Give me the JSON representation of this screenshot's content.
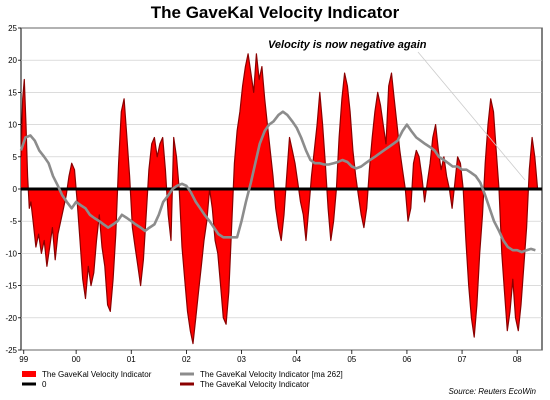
{
  "chart_data": {
    "type": "area",
    "title": "The GaveKal Velocity Indicator",
    "annotation": "Velocity is now negative again",
    "source": "Source: Reuters EcoWin",
    "ylim": [
      -25,
      25
    ],
    "yticks": [
      25,
      20,
      15,
      10,
      5,
      0,
      -5,
      -10,
      -15,
      -20,
      -25
    ],
    "xlim": [
      1999.0,
      2008.45
    ],
    "xticks": [
      {
        "label": "99",
        "x": 1999.05
      },
      {
        "label": "00",
        "x": 2000.0
      },
      {
        "label": "01",
        "x": 2001.0
      },
      {
        "label": "02",
        "x": 2002.0
      },
      {
        "label": "03",
        "x": 2003.0
      },
      {
        "label": "04",
        "x": 2004.0
      },
      {
        "label": "05",
        "x": 2005.0
      },
      {
        "label": "06",
        "x": 2006.0
      },
      {
        "label": "07",
        "x": 2007.0
      },
      {
        "label": "08",
        "x": 2008.0
      }
    ],
    "grid": true,
    "legend_position": "bottom",
    "legend": [
      {
        "label": "The GaveKal Velocity Indicator",
        "color": "#ff0000",
        "kind": "area"
      },
      {
        "label": "0",
        "color": "#000000",
        "kind": "line"
      },
      {
        "label": "The GaveKal Velocity Indicator [ma 262]",
        "color": "#8c8c8c",
        "kind": "line"
      },
      {
        "label": "The GaveKal Velocity Indicator",
        "color": "#8b0000",
        "kind": "line"
      }
    ],
    "colors": {
      "fill": "#ff0000",
      "outline": "#8b0000",
      "ma": "#8c8c8c",
      "zero": "#000000"
    },
    "series": [
      {
        "name": "The GaveKal Velocity Indicator",
        "x": [
          1999.0,
          1999.03,
          1999.06,
          1999.09,
          1999.12,
          1999.15,
          1999.18,
          1999.22,
          1999.27,
          1999.32,
          1999.37,
          1999.42,
          1999.47,
          1999.52,
          1999.57,
          1999.62,
          1999.67,
          1999.72,
          1999.77,
          1999.82,
          1999.87,
          1999.92,
          1999.97,
          2000.02,
          2000.07,
          2000.12,
          2000.17,
          2000.22,
          2000.27,
          2000.32,
          2000.37,
          2000.42,
          2000.47,
          2000.52,
          2000.57,
          2000.62,
          2000.67,
          2000.72,
          2000.77,
          2000.82,
          2000.87,
          2000.92,
          2000.97,
          2001.02,
          2001.07,
          2001.12,
          2001.17,
          2001.22,
          2001.27,
          2001.32,
          2001.37,
          2001.42,
          2001.47,
          2001.52,
          2001.57,
          2001.62,
          2001.67,
          2001.72,
          2001.77,
          2001.82,
          2001.87,
          2001.92,
          2001.97,
          2002.02,
          2002.07,
          2002.12,
          2002.17,
          2002.22,
          2002.27,
          2002.32,
          2002.37,
          2002.42,
          2002.47,
          2002.52,
          2002.57,
          2002.62,
          2002.67,
          2002.72,
          2002.77,
          2002.82,
          2002.87,
          2002.92,
          2002.97,
          2003.02,
          2003.07,
          2003.12,
          2003.17,
          2003.22,
          2003.27,
          2003.32,
          2003.37,
          2003.42,
          2003.47,
          2003.52,
          2003.57,
          2003.62,
          2003.67,
          2003.72,
          2003.77,
          2003.82,
          2003.87,
          2003.92,
          2003.97,
          2004.02,
          2004.07,
          2004.12,
          2004.17,
          2004.22,
          2004.27,
          2004.32,
          2004.37,
          2004.42,
          2004.47,
          2004.52,
          2004.57,
          2004.62,
          2004.67,
          2004.72,
          2004.77,
          2004.82,
          2004.87,
          2004.92,
          2004.97,
          2005.02,
          2005.07,
          2005.12,
          2005.17,
          2005.22,
          2005.27,
          2005.32,
          2005.37,
          2005.42,
          2005.47,
          2005.52,
          2005.57,
          2005.62,
          2005.67,
          2005.72,
          2005.77,
          2005.82,
          2005.87,
          2005.92,
          2005.97,
          2006.02,
          2006.07,
          2006.12,
          2006.17,
          2006.22,
          2006.27,
          2006.32,
          2006.37,
          2006.42,
          2006.47,
          2006.52,
          2006.57,
          2006.62,
          2006.67,
          2006.72,
          2006.77,
          2006.82,
          2006.87,
          2006.92,
          2006.97,
          2007.02,
          2007.07,
          2007.12,
          2007.17,
          2007.22,
          2007.27,
          2007.32,
          2007.37,
          2007.42,
          2007.47,
          2007.52,
          2007.57,
          2007.62,
          2007.67,
          2007.72,
          2007.77,
          2007.82,
          2007.87,
          2007.92,
          2007.97,
          2008.02,
          2008.07,
          2008.12,
          2008.17,
          2008.22,
          2008.27,
          2008.32,
          2008.37
        ],
        "values": [
          5,
          14,
          17,
          10,
          2,
          -3,
          -2,
          -5,
          -9,
          -7,
          -10,
          -8,
          -12,
          -9,
          -6,
          -11,
          -7,
          -5,
          -3,
          -1,
          2,
          4,
          3,
          -2,
          -8,
          -14,
          -17,
          -12,
          -15,
          -13,
          -8,
          -4,
          -9,
          -12,
          -18,
          -19,
          -14,
          -7,
          4,
          12,
          14,
          8,
          2,
          -6,
          -9,
          -12,
          -15,
          -11,
          -4,
          3,
          7,
          8,
          5,
          7,
          8,
          3,
          -4,
          -8,
          8,
          5,
          0,
          -9,
          -14,
          -19,
          -22,
          -24,
          -20,
          -16,
          -12,
          -8,
          -5,
          0,
          -3,
          -8,
          -10,
          -15,
          -20,
          -21,
          -16,
          -6,
          4,
          9,
          12,
          16,
          19,
          21,
          18,
          15,
          21,
          17,
          19,
          14,
          10,
          6,
          2,
          -3,
          -6,
          -8,
          -4,
          2,
          8,
          6,
          4,
          1,
          -2,
          -4,
          -8,
          -3,
          2,
          6,
          10,
          15,
          10,
          4,
          -3,
          -8,
          -5,
          0,
          8,
          14,
          18,
          16,
          12,
          6,
          2,
          -1,
          -4,
          -6,
          -3,
          3,
          8,
          12,
          15,
          13,
          10,
          7,
          16,
          18,
          14,
          10,
          6,
          3,
          0,
          -5,
          -3,
          4,
          6,
          5,
          2,
          -2,
          1,
          4,
          8,
          10,
          6,
          3,
          5,
          2,
          0,
          -3,
          1,
          5,
          4,
          0,
          -8,
          -15,
          -20,
          -23,
          -18,
          -10,
          -4,
          4,
          10,
          14,
          12,
          6,
          0,
          -10,
          -16,
          -22,
          -19,
          -14,
          -20,
          -22,
          -18,
          -12,
          -6,
          3,
          8,
          5,
          0
        ]
      },
      {
        "name": "The GaveKal Velocity Indicator [ma 262]",
        "x": [
          1999.0,
          1999.08,
          1999.17,
          1999.25,
          1999.33,
          1999.42,
          1999.5,
          1999.58,
          1999.67,
          1999.75,
          1999.83,
          1999.92,
          2000.0,
          2000.08,
          2000.17,
          2000.25,
          2000.33,
          2000.42,
          2000.5,
          2000.58,
          2000.67,
          2000.75,
          2000.83,
          2000.92,
          2001.0,
          2001.08,
          2001.17,
          2001.25,
          2001.33,
          2001.42,
          2001.5,
          2001.58,
          2001.67,
          2001.75,
          2001.83,
          2001.92,
          2002.0,
          2002.08,
          2002.17,
          2002.25,
          2002.33,
          2002.42,
          2002.5,
          2002.58,
          2002.67,
          2002.75,
          2002.83,
          2002.92,
          2003.0,
          2003.08,
          2003.17,
          2003.25,
          2003.33,
          2003.42,
          2003.5,
          2003.58,
          2003.67,
          2003.75,
          2003.83,
          2003.92,
          2004.0,
          2004.08,
          2004.17,
          2004.25,
          2004.33,
          2004.42,
          2004.5,
          2004.58,
          2004.67,
          2004.75,
          2004.83,
          2004.92,
          2005.0,
          2005.08,
          2005.17,
          2005.25,
          2005.33,
          2005.42,
          2005.5,
          2005.58,
          2005.67,
          2005.75,
          2005.83,
          2005.92,
          2006.0,
          2006.08,
          2006.17,
          2006.25,
          2006.33,
          2006.42,
          2006.5,
          2006.58,
          2006.67,
          2006.75,
          2006.83,
          2006.92,
          2007.0,
          2007.08,
          2007.17,
          2007.25,
          2007.33,
          2007.42,
          2007.5,
          2007.58,
          2007.67,
          2007.75,
          2007.83,
          2007.92,
          2008.0,
          2008.08,
          2008.17,
          2008.25,
          2008.33
        ],
        "values": [
          6,
          8,
          8.3,
          7.5,
          6,
          5,
          4,
          2,
          0.5,
          -1,
          -2,
          -3,
          -2,
          -2.5,
          -3,
          -4,
          -4.5,
          -5,
          -5.5,
          -6,
          -5.5,
          -5,
          -4,
          -4.5,
          -5,
          -5.5,
          -6,
          -6.5,
          -6,
          -5.5,
          -4,
          -2,
          -1,
          0,
          0.5,
          0.8,
          0.5,
          -0.5,
          -2,
          -3,
          -4,
          -5,
          -6,
          -7,
          -7.5,
          -7.5,
          -7.5,
          -7.5,
          -5,
          -2,
          1,
          4,
          7,
          9,
          10,
          10.5,
          11.5,
          12,
          11.5,
          10.5,
          9.5,
          8,
          6,
          4.5,
          4,
          4,
          3.8,
          3.8,
          4,
          4.2,
          4.5,
          4.2,
          3.5,
          3.2,
          3.5,
          4,
          4.5,
          5,
          5.5,
          6,
          6.5,
          7,
          7.5,
          9,
          10,
          9,
          8,
          7.5,
          7,
          6.5,
          6,
          5,
          4.5,
          4,
          3.5,
          3.5,
          3,
          3,
          2.5,
          2,
          1,
          -1,
          -3,
          -5,
          -6.5,
          -8,
          -9,
          -9.5,
          -9.5,
          -9.8,
          -9.5,
          -9.3,
          -9.5
        ]
      },
      {
        "name": "0",
        "x": [
          1999.0,
          2008.45
        ],
        "values": [
          0,
          0
        ]
      }
    ]
  }
}
